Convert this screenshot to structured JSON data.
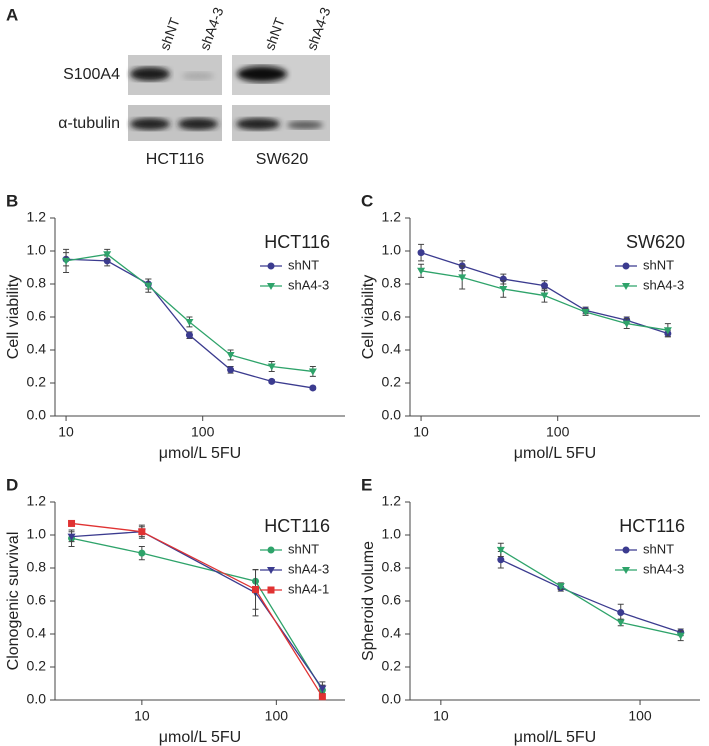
{
  "blot": {
    "label": "A",
    "columns": [
      "shNT",
      "shA4-3",
      "shNT",
      "shA4-3"
    ],
    "rows": [
      "S100A4",
      "α-tubulin"
    ],
    "groups": [
      "HCT116",
      "SW620"
    ]
  },
  "chart_data": [
    {
      "type": "line",
      "label": "B",
      "title": "HCT116",
      "xlabel": "μmol/L 5FU",
      "ylabel": "Cell viability",
      "xlog": true,
      "xlim": [
        8.3,
        1100
      ],
      "xticks": [
        10,
        100
      ],
      "ylim": [
        0,
        1.2
      ],
      "yticks": [
        {
          "value": 0,
          "label": "0.0"
        },
        0.2,
        0.4,
        0.6,
        0.8,
        {
          "value": 1,
          "label": "1.0"
        },
        1.2
      ],
      "legend": "upper right",
      "x": [
        10,
        20,
        40,
        80,
        160,
        320,
        640
      ],
      "series": [
        {
          "name": "shNT",
          "color": "#3b3b8f",
          "marker": "circle",
          "values": [
            0.95,
            0.94,
            0.8,
            0.49,
            0.28,
            0.21,
            0.17
          ],
          "errors": [
            0.04,
            0.03,
            0.03,
            0.02,
            0.02,
            0.01,
            0.01
          ]
        },
        {
          "name": "shA4-3",
          "color": "#2ea36a",
          "marker": "triangle",
          "values": [
            0.94,
            0.98,
            0.79,
            0.57,
            0.37,
            0.3,
            0.27
          ],
          "errors": [
            0.07,
            0.03,
            0.04,
            0.03,
            0.03,
            0.03,
            0.03
          ]
        }
      ]
    },
    {
      "type": "line",
      "label": "C",
      "title": "SW620",
      "xlabel": "μmol/L 5FU",
      "ylabel": "Cell viability",
      "xlog": true,
      "xlim": [
        8.3,
        1100
      ],
      "xticks": [
        10,
        100
      ],
      "ylim": [
        0,
        1.2
      ],
      "yticks": [
        {
          "value": 0,
          "label": "0.0"
        },
        0.2,
        0.4,
        0.6,
        0.8,
        {
          "value": 1,
          "label": "1.0"
        },
        1.2
      ],
      "legend": "upper right",
      "x": [
        10,
        20,
        40,
        80,
        160,
        320,
        640
      ],
      "series": [
        {
          "name": "shNT",
          "color": "#3b3b8f",
          "marker": "circle",
          "values": [
            0.99,
            0.91,
            0.83,
            0.79,
            0.64,
            0.58,
            0.5
          ],
          "errors": [
            0.05,
            0.03,
            0.03,
            0.03,
            0.02,
            0.02,
            0.02
          ]
        },
        {
          "name": "shA4-3",
          "color": "#2ea36a",
          "marker": "triangle",
          "values": [
            0.88,
            0.84,
            0.77,
            0.73,
            0.63,
            0.56,
            0.52
          ],
          "errors": [
            0.04,
            0.07,
            0.05,
            0.04,
            0.02,
            0.03,
            0.04
          ]
        }
      ]
    },
    {
      "type": "line",
      "label": "D",
      "title": "HCT116",
      "xlabel": "μmol/L 5FU",
      "ylabel": "Clonogenic survival",
      "xlog": true,
      "xlim": [
        2.26,
        324
      ],
      "xticks": [
        10,
        100
      ],
      "ylim": [
        0,
        1.2
      ],
      "yticks": [
        {
          "value": 0,
          "label": "0.0"
        },
        0.2,
        0.4,
        0.6,
        0.8,
        {
          "value": 1,
          "label": "1.0"
        },
        1.2
      ],
      "legend": "upper right",
      "x": [
        3,
        10,
        70,
        220
      ],
      "series": [
        {
          "name": "shNT",
          "color": "#2ea36a",
          "marker": "circle",
          "values": [
            0.98,
            0.89,
            0.72,
            0.06
          ],
          "errors": [
            0.05,
            0.04,
            0.07,
            0.03
          ]
        },
        {
          "name": "shA4-3",
          "color": "#3b3b8f",
          "marker": "triangle",
          "values": [
            0.99,
            1.02,
            0.65,
            0.07
          ],
          "errors": [
            0.03,
            0.03,
            0.14,
            0.04
          ]
        },
        {
          "name": "shA4-1",
          "color": "#e03232",
          "marker": "square",
          "values": [
            1.07,
            1.02,
            0.67,
            0.02
          ],
          "errors": [
            0.01,
            0.04,
            0.12,
            0.02
          ]
        }
      ]
    },
    {
      "type": "line",
      "label": "E",
      "title": "HCT116",
      "xlabel": "μmol/L 5FU",
      "ylabel": "Spheroid volume",
      "xlog": true,
      "xlim": [
        7,
        200
      ],
      "xticks": [
        10,
        100
      ],
      "ylim": [
        0,
        1.2
      ],
      "yticks": [
        {
          "value": 0,
          "label": "0.0"
        },
        0.2,
        0.4,
        0.6,
        0.8,
        {
          "value": 1,
          "label": "1.0"
        },
        1.2
      ],
      "legend": "upper right",
      "x": [
        20,
        40,
        80,
        160
      ],
      "series": [
        {
          "name": "shNT",
          "color": "#3b3b8f",
          "marker": "circle",
          "values": [
            0.85,
            0.68,
            0.53,
            0.41
          ],
          "errors": [
            0.05,
            0.02,
            0.05,
            0.02
          ]
        },
        {
          "name": "shA4-3",
          "color": "#2ea36a",
          "marker": "triangle",
          "values": [
            0.91,
            0.69,
            0.47,
            0.39
          ],
          "errors": [
            0.04,
            0.02,
            0.02,
            0.03
          ]
        }
      ]
    }
  ]
}
